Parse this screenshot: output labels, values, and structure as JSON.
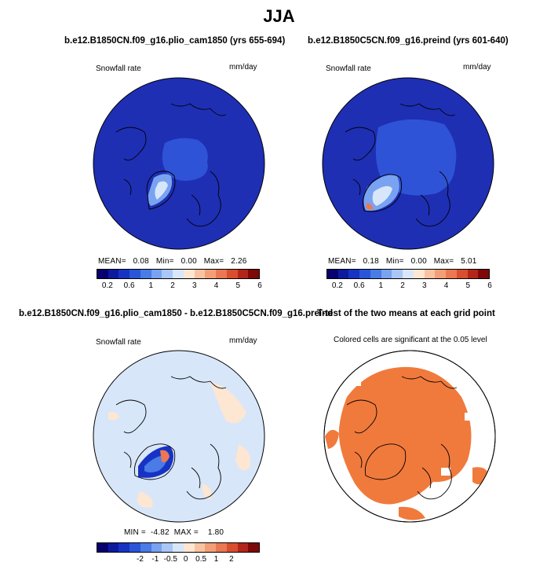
{
  "page": {
    "title": "JJA"
  },
  "panels": {
    "p1": {
      "title": "b.e12.B1850CN.f09_g16.plio_cam1850 (yrs 655-694)",
      "left": "Snowfall rate",
      "right": "mm/day",
      "mean_label": "MEAN=",
      "mean": "0.08",
      "min_label": "Min=",
      "min": "0.00",
      "max_label": "Max=",
      "max": "2.26"
    },
    "p2": {
      "title": "b.e12.B1850C5CN.f09_g16.preind (yrs 601-640)",
      "left": "Snowfall rate",
      "right": "mm/day",
      "mean_label": "MEAN=",
      "mean": "0.18",
      "min_label": "Min=",
      "min": "0.00",
      "max_label": "Max=",
      "max": "5.01"
    },
    "p3": {
      "title": "b.e12.B1850CN.f09_g16.plio_cam1850 - b.e12.B1850C5CN.f09_g16.preind",
      "left": "Snowfall rate",
      "right": "mm/day",
      "min_label": "MIN =",
      "min": "-4.82",
      "max_label": "MAX =",
      "max": "1.80"
    },
    "p4": {
      "title": "T-test of the two means at each grid point",
      "note": "Colored cells are significant at the 0.05 level"
    }
  },
  "colorbars": {
    "abs": {
      "colors": [
        "#08006e",
        "#0c1a9e",
        "#1633c4",
        "#2a55d8",
        "#4a7be6",
        "#79a3f0",
        "#a9c6f6",
        "#d8e6fa",
        "#fde6d2",
        "#f8c3a1",
        "#f29f78",
        "#ea7852",
        "#d94e2e",
        "#b3251a",
        "#7e0808"
      ],
      "tick_labels": [
        "0.2",
        "0.6",
        "1",
        "2",
        "3",
        "4",
        "5",
        "6"
      ]
    },
    "diff": {
      "colors": [
        "#08006e",
        "#0c1a9e",
        "#1633c4",
        "#2a55d8",
        "#4a7be6",
        "#79a3f0",
        "#a9c6f6",
        "#d8e6fa",
        "#fde6d2",
        "#f8c3a1",
        "#f29f78",
        "#ea7852",
        "#d94e2e",
        "#b3251a",
        "#7e0808"
      ],
      "tick_labels": [
        "-2",
        "-1",
        "-0.5",
        "0",
        "0.5",
        "1",
        "2"
      ]
    }
  },
  "chart_data": [
    {
      "type": "heatmap",
      "title": "b.e12.B1850CN.f09_g16.plio_cam1850 (yrs 655-694)",
      "season": "JJA",
      "variable": "Snowfall rate",
      "units": "mm/day",
      "projection": "north polar stereographic",
      "stats": {
        "mean": 0.08,
        "min": 0.0,
        "max": 2.26
      },
      "levels": [
        0.2,
        0.6,
        1,
        2,
        3,
        4,
        5,
        6
      ],
      "background": "#1e2fb4"
    },
    {
      "type": "heatmap",
      "title": "b.e12.B1850C5CN.f09_g16.preind (yrs 601-640)",
      "season": "JJA",
      "variable": "Snowfall rate",
      "units": "mm/day",
      "projection": "north polar stereographic",
      "stats": {
        "mean": 0.18,
        "min": 0.0,
        "max": 5.01
      },
      "levels": [
        0.2,
        0.6,
        1,
        2,
        3,
        4,
        5,
        6
      ],
      "background": "#1e2fb4"
    },
    {
      "type": "heatmap",
      "title": "b.e12.B1850CN.f09_g16.plio_cam1850 - b.e12.B1850C5CN.f09_g16.preind",
      "variable": "Snowfall rate",
      "units": "mm/day",
      "projection": "north polar stereographic",
      "stats": {
        "min": -4.82,
        "max": 1.8
      },
      "levels": [
        -2,
        -1,
        -0.5,
        0,
        0.5,
        1,
        2
      ],
      "background": "#d8e6fa"
    },
    {
      "type": "heatmap",
      "title": "T-test of the two means at each grid point",
      "note": "Colored cells are significant at the 0.05 level",
      "significance_level": 0.05,
      "significant_color": "#f07a3c",
      "background": "#ffffff"
    }
  ]
}
